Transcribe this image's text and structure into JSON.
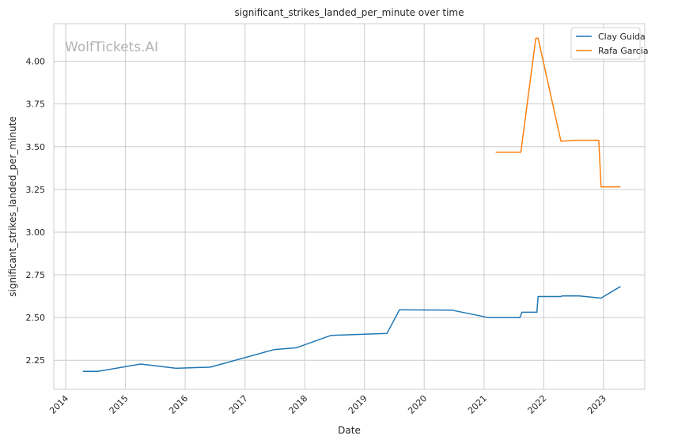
{
  "chart_data": {
    "type": "line",
    "title": "significant_strikes_landed_per_minute over time",
    "xlabel": "Date",
    "ylabel": "significant_strikes_landed_per_minute",
    "watermark": "WolfTickets.AI",
    "xlim": [
      "2013-10-20",
      "2023-09-10"
    ],
    "ylim": [
      2.08,
      4.22
    ],
    "x_ticks": [
      "2014",
      "2015",
      "2016",
      "2017",
      "2018",
      "2019",
      "2020",
      "2021",
      "2022",
      "2023"
    ],
    "y_ticks": [
      2.25,
      2.5,
      2.75,
      3.0,
      3.25,
      3.5,
      3.75,
      4.0
    ],
    "y_tick_labels": [
      "2.25",
      "2.50",
      "2.75",
      "3.00",
      "3.25",
      "3.50",
      "3.75",
      "4.00"
    ],
    "grid": true,
    "legend_position": "top-right",
    "series": [
      {
        "name": "Clay Guida",
        "color": "#1f77b4",
        "points": [
          [
            "2014-04-16",
            2.185
          ],
          [
            "2014-07-16",
            2.185
          ],
          [
            "2015-04-04",
            2.228
          ],
          [
            "2015-11-07",
            2.203
          ],
          [
            "2016-06-04",
            2.21
          ],
          [
            "2017-06-25",
            2.312
          ],
          [
            "2017-11-11",
            2.323
          ],
          [
            "2018-06-09",
            2.395
          ],
          [
            "2019-05-18",
            2.407
          ],
          [
            "2019-08-03",
            2.545
          ],
          [
            "2020-06-20",
            2.543
          ],
          [
            "2021-01-31",
            2.499
          ],
          [
            "2021-08-07",
            2.499
          ],
          [
            "2021-08-21",
            2.531
          ],
          [
            "2021-11-20",
            2.531
          ],
          [
            "2021-11-27",
            2.623
          ],
          [
            "2022-04-16",
            2.623
          ],
          [
            "2022-04-23",
            2.627
          ],
          [
            "2022-08-06",
            2.627
          ],
          [
            "2022-12-17",
            2.614
          ],
          [
            "2023-04-15",
            2.682
          ]
        ]
      },
      {
        "name": "Rafa Garcia",
        "color": "#ff7f0e",
        "points": [
          [
            "2021-03-13",
            3.468
          ],
          [
            "2021-08-14",
            3.468
          ],
          [
            "2021-11-13",
            4.135
          ],
          [
            "2021-11-27",
            4.135
          ],
          [
            "2022-04-16",
            3.532
          ],
          [
            "2022-07-16",
            3.538
          ],
          [
            "2022-12-03",
            3.538
          ],
          [
            "2022-12-17",
            3.265
          ],
          [
            "2023-04-15",
            3.265
          ]
        ]
      }
    ]
  }
}
